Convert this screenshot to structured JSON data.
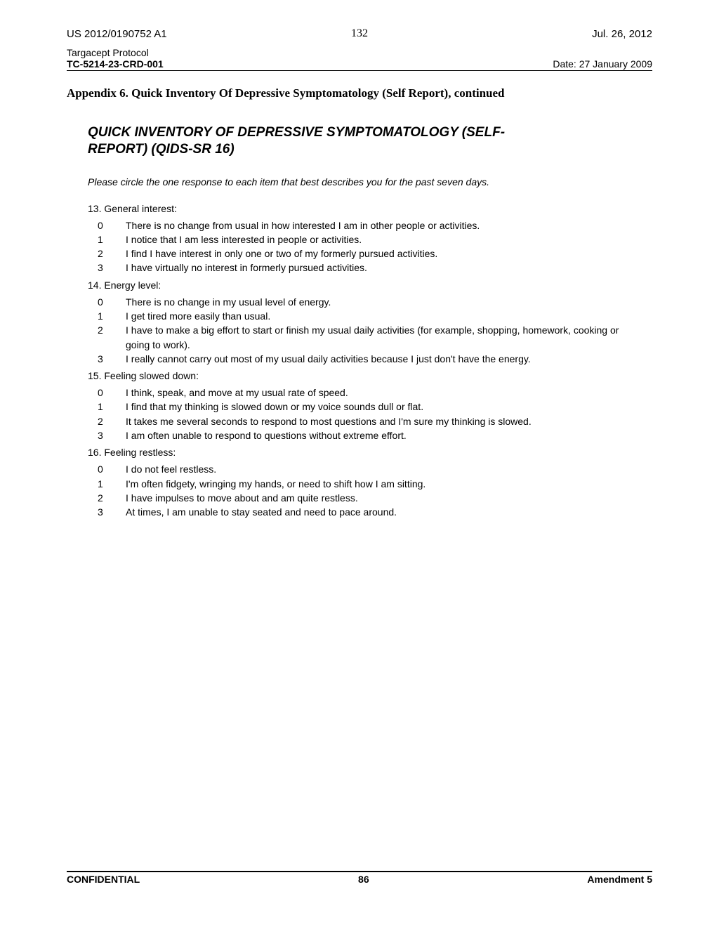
{
  "header": {
    "pub_left": "US 2012/0190752 A1",
    "pub_right": "Jul. 26, 2012",
    "page_small": "132",
    "protocol_line1": "Targacept Protocol",
    "protocol_line2": "TC-5214-23-CRD-001",
    "protocol_date": "Date: 27 January 2009"
  },
  "appendix_title": "Appendix 6.   Quick Inventory Of Depressive Symptomatology (Self Report), continued",
  "qids_title_line1": "QUICK INVENTORY OF DEPRESSIVE SYMPTOMATOLOGY (SELF-",
  "qids_title_line2": "REPORT) (QIDS-SR 16)",
  "instruction": "Please circle the one response to each item that best describes you for the past seven days.",
  "questions": [
    {
      "head": "13. General interest:",
      "opts": [
        {
          "n": "0",
          "t": "There is no change from usual in how interested I am in other people or activities."
        },
        {
          "n": "1",
          "t": "I notice that I am less interested in people or activities."
        },
        {
          "n": "2",
          "t": "I find I have interest in only one or two of my formerly pursued activities."
        },
        {
          "n": "3",
          "t": "I have virtually no interest in formerly pursued activities."
        }
      ]
    },
    {
      "head": "14. Energy level:",
      "opts": [
        {
          "n": "0",
          "t": "There is no change in my usual level of energy."
        },
        {
          "n": "1",
          "t": "I get tired more easily than usual."
        },
        {
          "n": "2",
          "t": "I have to make a big effort to start or finish my usual daily activities (for example, shopping, homework, cooking or going to work)."
        },
        {
          "n": "3",
          "t": "I really cannot carry out most of my usual daily activities because I just don't have the energy."
        }
      ]
    },
    {
      "head": "15. Feeling slowed down:",
      "opts": [
        {
          "n": "0",
          "t": "I think, speak, and move at my usual rate of speed."
        },
        {
          "n": "1",
          "t": "I find that my thinking is slowed down or my voice sounds dull or flat."
        },
        {
          "n": "2",
          "t": "It takes me several seconds to respond to most questions and I'm sure my thinking is slowed."
        },
        {
          "n": "3",
          "t": "I am often unable to respond to questions without extreme effort."
        }
      ]
    },
    {
      "head": "16. Feeling restless:",
      "opts": [
        {
          "n": "0",
          "t": "I do not feel restless."
        },
        {
          "n": "1",
          "t": "I'm often fidgety, wringing my hands, or need to shift how I am sitting."
        },
        {
          "n": "2",
          "t": "I have impulses to move about and am quite restless."
        },
        {
          "n": "3",
          "t": "At times, I am unable to stay seated and need to pace around."
        }
      ]
    }
  ],
  "footer": {
    "left": "CONFIDENTIAL",
    "mid": "86",
    "right": "Amendment 5"
  }
}
